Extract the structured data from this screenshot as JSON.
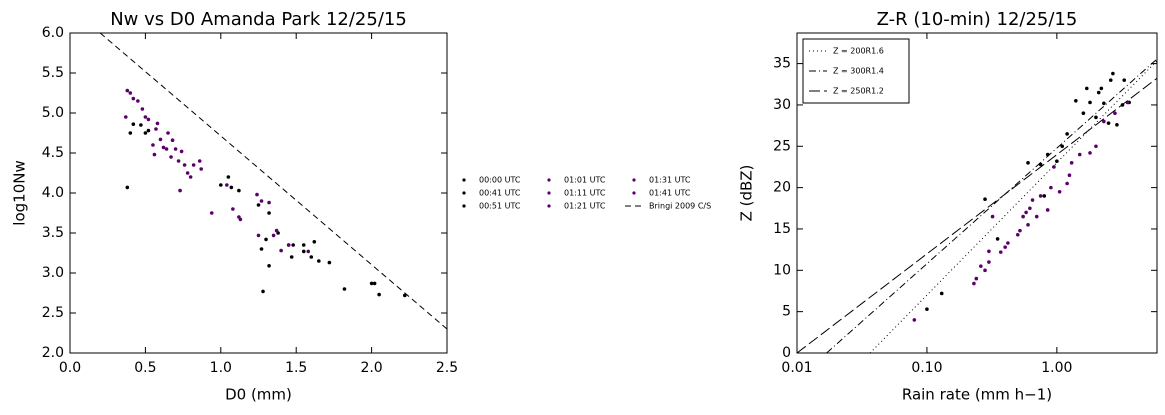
{
  "chart_data": [
    {
      "type": "scatter",
      "title": "Nw vs D0 Amanda Park 12/25/15",
      "x_label": "D0 (mm)",
      "y_label": "log10Nw",
      "xlim": [
        0.0,
        2.5
      ],
      "ylim": [
        2.0,
        6.0
      ],
      "xticks": [
        {
          "value": 0,
          "label": "0.0"
        },
        {
          "value": 0.5,
          "label": "0.5"
        },
        {
          "value": 1,
          "label": "1.0"
        },
        {
          "value": 1.5,
          "label": "1.5"
        },
        {
          "value": 2,
          "label": "2.0"
        },
        {
          "value": 2.5,
          "label": "2.5"
        }
      ],
      "yticks": [
        {
          "value": 2,
          "label": "2.0"
        },
        {
          "value": 2.5,
          "label": "2.5"
        },
        {
          "value": 3,
          "label": "3.0"
        },
        {
          "value": 3.5,
          "label": "3.5"
        },
        {
          "value": 4,
          "label": "4.0"
        },
        {
          "value": 4.5,
          "label": "4.5"
        },
        {
          "value": 5,
          "label": "5.0"
        },
        {
          "value": 5.5,
          "label": "5.5"
        },
        {
          "value": 6,
          "label": "6.0"
        }
      ],
      "legend": "outside-right",
      "series": [
        {
          "name": "00:00 UTC",
          "color": "#000000",
          "x": [
            0.38,
            0.4,
            0.42,
            0.47,
            0.5,
            0.52,
            1.0,
            1.05,
            1.07,
            1.12
          ],
          "values": [
            4.07,
            4.75,
            4.86,
            4.85,
            4.75,
            4.78,
            4.1,
            4.2,
            4.07,
            4.03
          ]
        },
        {
          "name": "00:41 UTC",
          "color": "#000000",
          "x": [
            1.25,
            1.27,
            1.28,
            1.3,
            1.32,
            1.32,
            1.38,
            1.45,
            1.47,
            1.48
          ],
          "values": [
            3.85,
            3.3,
            2.77,
            3.42,
            3.09,
            3.75,
            3.5,
            3.35,
            3.2,
            3.35
          ]
        },
        {
          "name": "00:51 UTC",
          "color": "#000000",
          "x": [
            1.55,
            1.55,
            1.6,
            1.62,
            1.65,
            1.72,
            1.82,
            2.0,
            2.02,
            2.05,
            2.22
          ],
          "values": [
            3.35,
            3.27,
            3.2,
            3.39,
            3.15,
            3.13,
            2.8,
            2.87,
            2.87,
            2.73,
            2.72
          ]
        },
        {
          "name": "01:01 UTC",
          "color": "#5b006b",
          "x": [
            0.37,
            0.38,
            0.4,
            0.42,
            0.45,
            0.48,
            0.5,
            0.52
          ],
          "values": [
            4.95,
            5.28,
            5.25,
            5.18,
            5.15,
            5.05,
            4.95,
            4.92
          ]
        },
        {
          "name": "01:11 UTC",
          "color": "#5b006b",
          "x": [
            0.55,
            0.56,
            0.57,
            0.58,
            0.6,
            0.62,
            0.64,
            0.65
          ],
          "values": [
            4.6,
            4.48,
            4.8,
            4.87,
            4.67,
            4.57,
            4.55,
            4.75
          ]
        },
        {
          "name": "01:21 UTC",
          "color": "#5b006b",
          "x": [
            0.67,
            0.68,
            0.7,
            0.72,
            0.73,
            0.74,
            0.76,
            0.78
          ],
          "values": [
            4.45,
            4.66,
            4.55,
            4.4,
            4.03,
            4.52,
            4.35,
            4.25
          ]
        },
        {
          "name": "01:31 UTC",
          "color": "#5b006b",
          "x": [
            0.8,
            0.82,
            0.86,
            0.87,
            0.94,
            1.04,
            1.08,
            1.12,
            1.13
          ],
          "values": [
            4.2,
            4.35,
            4.4,
            4.3,
            3.75,
            4.1,
            3.8,
            3.7,
            3.67
          ]
        },
        {
          "name": "01:41 UTC",
          "color": "#5b006b",
          "x": [
            1.24,
            1.25,
            1.27,
            1.32,
            1.35,
            1.37,
            1.4,
            1.45,
            1.58
          ],
          "values": [
            3.98,
            3.47,
            3.9,
            3.88,
            3.47,
            3.53,
            3.28,
            3.35,
            3.27
          ]
        },
        {
          "name": "Bringi 2009 C/S",
          "color": "#000000",
          "line_style": "dashed",
          "x": [
            0.2,
            2.5
          ],
          "values": [
            6.0,
            2.3
          ]
        }
      ]
    },
    {
      "type": "scatter",
      "title": "Z-R (10-min) 12/25/15",
      "x_label": "Rain rate (mm h−1)",
      "y_label": "Z (dBZ)",
      "xscale": "log",
      "xlim": [
        0.01,
        5.9
      ],
      "ylim": [
        0,
        38.7
      ],
      "xticks": [
        0.01,
        {
          "value": 0.1,
          "label": "0.10"
        },
        {
          "value": 1,
          "label": "1.00"
        }
      ],
      "yticks": [
        0,
        5,
        10,
        15,
        20,
        25,
        30,
        35
      ],
      "legend": "upper-left",
      "series": [
        {
          "color": "#000000",
          "x": [
            0.13,
            0.1,
            0.28,
            0.6,
            0.75,
            0.85,
            1.0,
            1.1,
            1.2,
            1.4,
            1.6,
            1.7,
            1.8,
            2.0,
            2.1,
            2.2,
            2.3,
            2.5,
            2.6,
            2.7,
            2.9,
            3.2,
            3.3,
            3.6,
            0.35,
            0.8
          ],
          "values": [
            7.2,
            5.3,
            18.6,
            23,
            22.8,
            24,
            23.2,
            25,
            26.5,
            30.5,
            29,
            32,
            30.3,
            28.5,
            31.5,
            32,
            30.2,
            27.8,
            33,
            33.8,
            27.6,
            30,
            33,
            30.3,
            13.8,
            19
          ]
        },
        {
          "color": "#5b006b",
          "x": [
            0.08,
            0.23,
            0.24,
            0.26,
            0.28,
            0.3,
            0.3,
            0.32,
            0.37,
            0.4,
            0.42,
            0.5,
            0.52,
            0.55,
            0.58,
            0.6,
            0.62,
            0.65,
            0.7,
            0.75,
            0.85,
            0.9,
            0.95,
            1.05,
            1.2,
            1.25,
            1.3,
            1.5,
            1.8,
            2.0,
            2.3,
            2.8,
            3.5
          ],
          "values": [
            4,
            8.4,
            9,
            10.5,
            10,
            11,
            12.3,
            16.5,
            12.2,
            12.8,
            13.3,
            14.3,
            14.8,
            16.5,
            17,
            15.5,
            17.5,
            18.5,
            16.5,
            19,
            17.3,
            20,
            22.5,
            19.5,
            20.5,
            21.5,
            23,
            24,
            24.2,
            25,
            28,
            29,
            30.3
          ]
        },
        {
          "name": "Z = 200R1.6",
          "color": "#000000",
          "line_style": "dotted",
          "x": [
            0.0365,
            5.9
          ],
          "values": [
            0,
            35.35
          ]
        },
        {
          "name": "Z = 300R1.4",
          "color": "#000000",
          "line_style": "dashdot",
          "x": [
            0.0169,
            5.9
          ],
          "values": [
            0,
            35.56
          ]
        },
        {
          "name": "Z = 250R1.2",
          "color": "#000000",
          "line_style": "longdash",
          "x": [
            0.01,
            5.9
          ],
          "values": [
            0,
            33.23
          ]
        }
      ]
    }
  ]
}
